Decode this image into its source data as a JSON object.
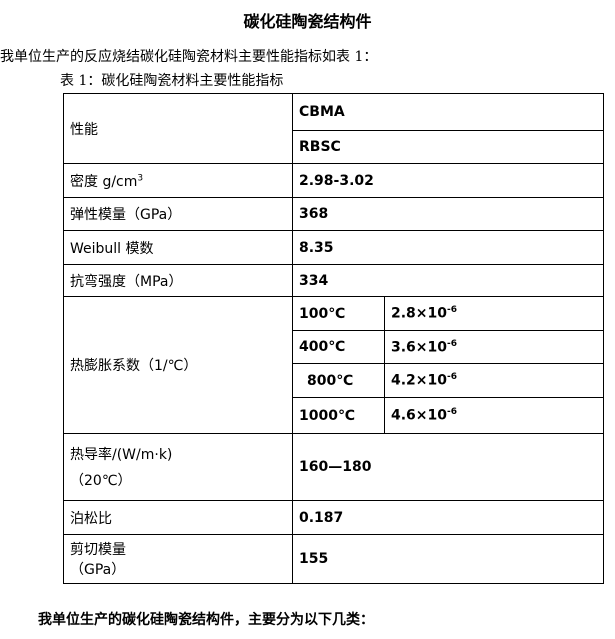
{
  "title": "碳化硅陶瓷结构件",
  "intro": "我单位生产的反应烧结碳化硅陶瓷材料主要性能指标如表 1：",
  "caption": "表 1：碳化硅陶瓷材料主要性能指标",
  "table": {
    "header_label": "性能",
    "header_values": [
      "CBMA",
      "RBSC"
    ],
    "density": {
      "label": "密度 g/cm",
      "sup": "3",
      "value": "2.98-3.02"
    },
    "elastic": {
      "label": "弹性模量（GPa）",
      "value": "368"
    },
    "weibull": {
      "label": "Weibull 模数",
      "value": "8.35"
    },
    "flexural": {
      "label": "抗弯强度（MPa）",
      "value": "334"
    },
    "cte": {
      "label": "热膨胀系数（1/℃）",
      "rows": [
        {
          "temp": "100℃",
          "value": "2.8×10",
          "exp": "-6"
        },
        {
          "temp": "400℃",
          "value": "3.6×10",
          "exp": "-6"
        },
        {
          "temp": "800℃",
          "value": "4.2×10",
          "exp": "-6"
        },
        {
          "temp": "1000℃",
          "value": "4.6×10",
          "exp": "-6"
        }
      ]
    },
    "thermal": {
      "label_line1": "热导率/(W/m·k)",
      "label_line2": "（20℃）",
      "value": "160—180"
    },
    "poisson": {
      "label": "泊松比",
      "value": "0.187"
    },
    "shear": {
      "label_line1": "剪切模量",
      "label_line2": "（GPa）",
      "value": "155"
    }
  },
  "outro": "我单位生产的碳化硅陶瓷结构件，主要分为以下几类："
}
